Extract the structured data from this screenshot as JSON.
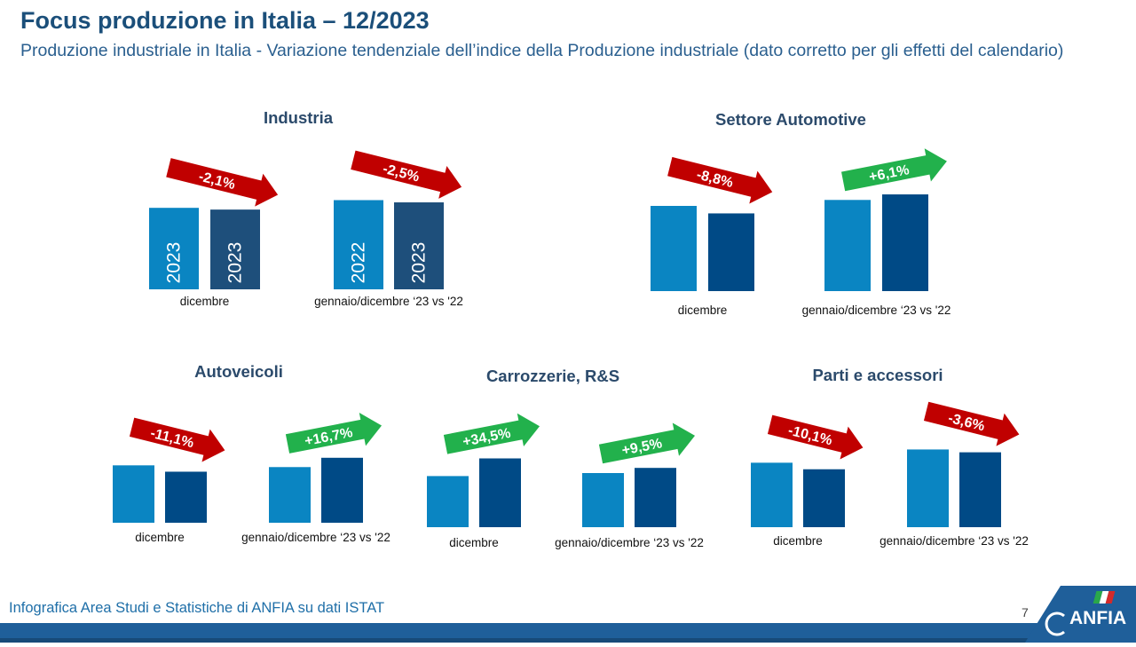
{
  "header": {
    "title": "Focus produzione in Italia – 12/2023",
    "subtitle": "Produzione industriale in Italia - Variazione tendenziale dell’indice della Produzione industriale (dato corretto per gli effetti del calendario)"
  },
  "footer": {
    "source": "Infografica Area Studi e Statistiche di ANFIA su dati ISTAT",
    "page": "7",
    "logo_text": "ANFIA"
  },
  "colors": {
    "bar_prev": "#0a85c2",
    "bar_curr_industry": "#1e4f7b",
    "bar_curr_auto": "#004a86",
    "arrow_neg": "#c00000",
    "arrow_pos": "#22b14c"
  },
  "chart_data": [
    {
      "type": "bar",
      "title": "Industria",
      "groups": [
        {
          "label": "dicembre",
          "bar_labels": [
            "2023",
            "2023"
          ],
          "values": [
            98.2,
            96.1
          ],
          "change": "-2,1%",
          "direction": "down"
        },
        {
          "label": "gennaio/dicembre ‘23 vs '22",
          "bar_labels": [
            "2022",
            "2023"
          ],
          "values": [
            107.5,
            104.8
          ],
          "change": "-2,5%",
          "direction": "down"
        }
      ]
    },
    {
      "type": "bar",
      "title": "Settore Automotive",
      "groups": [
        {
          "label": "dicembre",
          "bar_labels": [
            "",
            ""
          ],
          "values": [
            100,
            91.2
          ],
          "change": "-8,8%",
          "direction": "down"
        },
        {
          "label": "gennaio/dicembre ‘23 vs '22",
          "bar_labels": [
            "",
            ""
          ],
          "values": [
            107,
            113.5
          ],
          "change": "+6,1%",
          "direction": "up"
        }
      ]
    },
    {
      "type": "bar",
      "title": "Autoveicoli",
      "groups": [
        {
          "label": "dicembre",
          "bar_labels": [
            "",
            ""
          ],
          "values": [
            66,
            58.7
          ],
          "change": "-11,1%",
          "direction": "down"
        },
        {
          "label": "gennaio/dicembre ‘23 vs '22",
          "bar_labels": [
            "",
            ""
          ],
          "values": [
            64,
            74.7
          ],
          "change": "+16,7%",
          "direction": "up"
        }
      ]
    },
    {
      "type": "bar",
      "title": "Carrozzerie, R&S",
      "groups": [
        {
          "label": "dicembre",
          "bar_labels": [
            "",
            ""
          ],
          "values": [
            57.6,
            77.5
          ],
          "change": "+34,5%",
          "direction": "up"
        },
        {
          "label": "gennaio/dicembre ‘23 vs '22",
          "bar_labels": [
            "",
            ""
          ],
          "values": [
            61,
            66.8
          ],
          "change": "+9,5%",
          "direction": "up"
        }
      ]
    },
    {
      "type": "bar",
      "title": "Parti e accessori",
      "groups": [
        {
          "label": "dicembre",
          "bar_labels": [
            "",
            ""
          ],
          "values": [
            73,
            65.6
          ],
          "change": "-10,1%",
          "direction": "down"
        },
        {
          "label": "gennaio/dicembre ‘23 vs '22",
          "bar_labels": [
            "",
            ""
          ],
          "values": [
            88,
            84.8
          ],
          "change": "-3,6%",
          "direction": "down"
        }
      ]
    }
  ]
}
